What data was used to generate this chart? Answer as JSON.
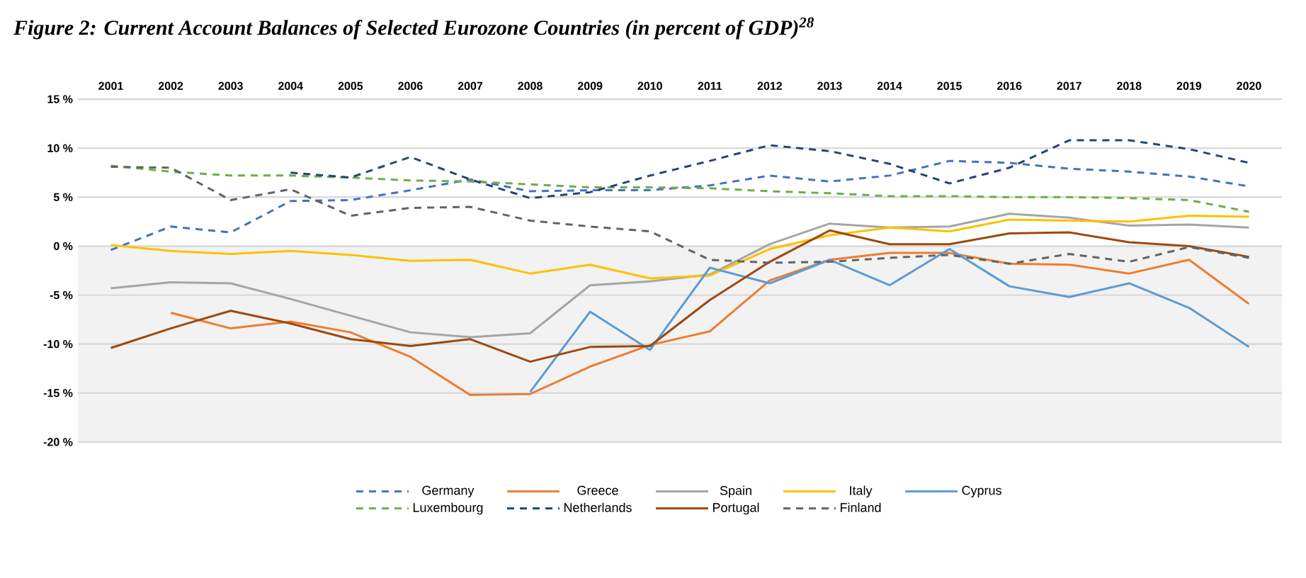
{
  "chart_data": {
    "type": "line",
    "title": "Figure 2: Current Account Balances of Selected Eurozone Countries (in percent of GDP)$^{28}$",
    "categories": [
      "2001",
      "2002",
      "2003",
      "2004",
      "2005",
      "2006",
      "2007",
      "2008",
      "2009",
      "2010",
      "2011",
      "2012",
      "2013",
      "2014",
      "2015",
      "2016",
      "2017",
      "2018",
      "2019",
      "2020"
    ],
    "ylim": [
      -20,
      15
    ],
    "yticks": [
      {
        "value": -20,
        "label": "-20 %"
      },
      {
        "value": -15,
        "label": "-15 %"
      },
      {
        "value": -10,
        "label": "-10 %"
      },
      {
        "value": -5,
        "label": "-5 %"
      },
      {
        "value": 0,
        "label": "0 %"
      },
      {
        "value": 5,
        "label": "5 %"
      },
      {
        "value": 10,
        "label": "10 %"
      },
      {
        "value": 15,
        "label": "15 %"
      }
    ],
    "grid": "y",
    "legend": "bottom",
    "bands": [
      {
        "axis": "y",
        "from": -20,
        "to": 0,
        "color": "#f2f2f2"
      }
    ],
    "series": [
      {
        "name": "Germany",
        "color": "#4472c4",
        "line_style": "dashed",
        "values": [
          -0.4,
          2.0,
          1.4,
          4.6,
          4.7,
          5.7,
          6.8,
          5.6,
          5.7,
          5.7,
          6.2,
          7.2,
          6.6,
          7.2,
          8.7,
          8.5,
          7.9,
          7.6,
          7.1,
          6.1
        ]
      },
      {
        "name": "Greece",
        "color": "#ed7d31",
        "line_style": "solid",
        "values": [
          null,
          -6.8,
          -8.4,
          -7.7,
          -8.8,
          -11.3,
          -15.2,
          -15.1,
          -12.3,
          -10.1,
          -8.7,
          -3.5,
          -1.4,
          -0.7,
          -0.7,
          -1.8,
          -1.9,
          -2.8,
          -1.4,
          -5.9
        ]
      },
      {
        "name": "Spain",
        "color": "#a5a5a5",
        "line_style": "solid",
        "values": [
          -4.3,
          -3.7,
          -3.8,
          -5.4,
          -7.1,
          -8.8,
          -9.3,
          -8.9,
          -4.0,
          -3.6,
          -2.9,
          0.2,
          2.3,
          1.9,
          2.0,
          3.3,
          2.9,
          2.1,
          2.2,
          1.9
        ]
      },
      {
        "name": "Italy",
        "color": "#ffc000",
        "line_style": "solid",
        "values": [
          0.1,
          -0.5,
          -0.8,
          -0.5,
          -0.9,
          -1.5,
          -1.4,
          -2.8,
          -1.9,
          -3.3,
          -3.0,
          -0.3,
          1.1,
          1.9,
          1.5,
          2.7,
          2.6,
          2.5,
          3.1,
          3.0
        ]
      },
      {
        "name": "Cyprus",
        "color": "#5b9bd5",
        "line_style": "solid",
        "values": [
          null,
          null,
          null,
          null,
          null,
          null,
          null,
          -14.9,
          -6.7,
          -10.6,
          -2.2,
          -3.8,
          -1.4,
          -4.0,
          -0.3,
          -4.1,
          -5.2,
          -3.8,
          -6.3,
          -10.3
        ]
      },
      {
        "name": "Luxembourg",
        "color": "#70ad47",
        "line_style": "dashed",
        "values": [
          8.2,
          7.6,
          7.2,
          7.2,
          7.0,
          6.7,
          6.6,
          6.3,
          6.0,
          6.0,
          5.9,
          5.6,
          5.4,
          5.1,
          5.1,
          5.0,
          5.0,
          4.9,
          4.7,
          3.5
        ]
      },
      {
        "name": "Netherlands",
        "color": "#264478",
        "line_style": "dashed",
        "values": [
          null,
          null,
          null,
          7.5,
          7.0,
          9.1,
          6.8,
          4.9,
          5.5,
          7.2,
          8.7,
          10.3,
          9.7,
          8.4,
          6.4,
          8.0,
          10.8,
          10.8,
          9.9,
          8.5
        ]
      },
      {
        "name": "Portugal",
        "color": "#9e480e",
        "line_style": "solid",
        "values": [
          -10.4,
          -8.4,
          -6.6,
          -7.9,
          -9.5,
          -10.2,
          -9.5,
          -11.8,
          -10.3,
          -10.2,
          -5.5,
          -1.6,
          1.6,
          0.2,
          0.2,
          1.3,
          1.4,
          0.4,
          0.0,
          -1.1
        ]
      },
      {
        "name": "Finland",
        "color": "#636363",
        "line_style": "dashed",
        "values": [
          8.1,
          8.0,
          4.7,
          5.8,
          3.1,
          3.9,
          4.0,
          2.6,
          2.0,
          1.5,
          -1.4,
          -1.7,
          -1.6,
          -1.2,
          -0.9,
          -1.8,
          -0.8,
          -1.6,
          -0.1,
          -1.2
        ]
      }
    ]
  }
}
